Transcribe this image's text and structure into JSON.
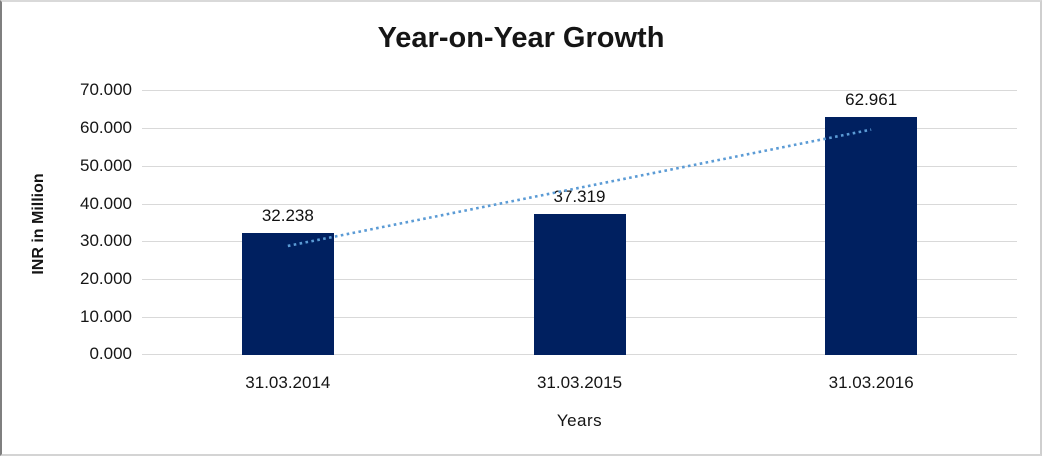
{
  "chart_data": {
    "type": "bar",
    "title": "Year-on-Year Growth",
    "xlabel": "Years",
    "ylabel": "INR in Million",
    "categories": [
      "31.03.2014",
      "31.03.2015",
      "31.03.2016"
    ],
    "values": [
      32.238,
      37.319,
      62.961
    ],
    "value_labels": [
      "32.238",
      "37.319",
      "62.961"
    ],
    "ylim": [
      0,
      70
    ],
    "ytick_step": 10,
    "ytick_labels": [
      "0.000",
      "10.000",
      "20.000",
      "30.000",
      "40.000",
      "50.000",
      "60.000",
      "70.000"
    ],
    "grid": true,
    "legend_position": "none",
    "trendline": {
      "type": "linear",
      "style": "dotted"
    }
  },
  "colors": {
    "bar": "#002060",
    "trendline": "#5B9BD5",
    "gridline": "#D9D9D9"
  }
}
